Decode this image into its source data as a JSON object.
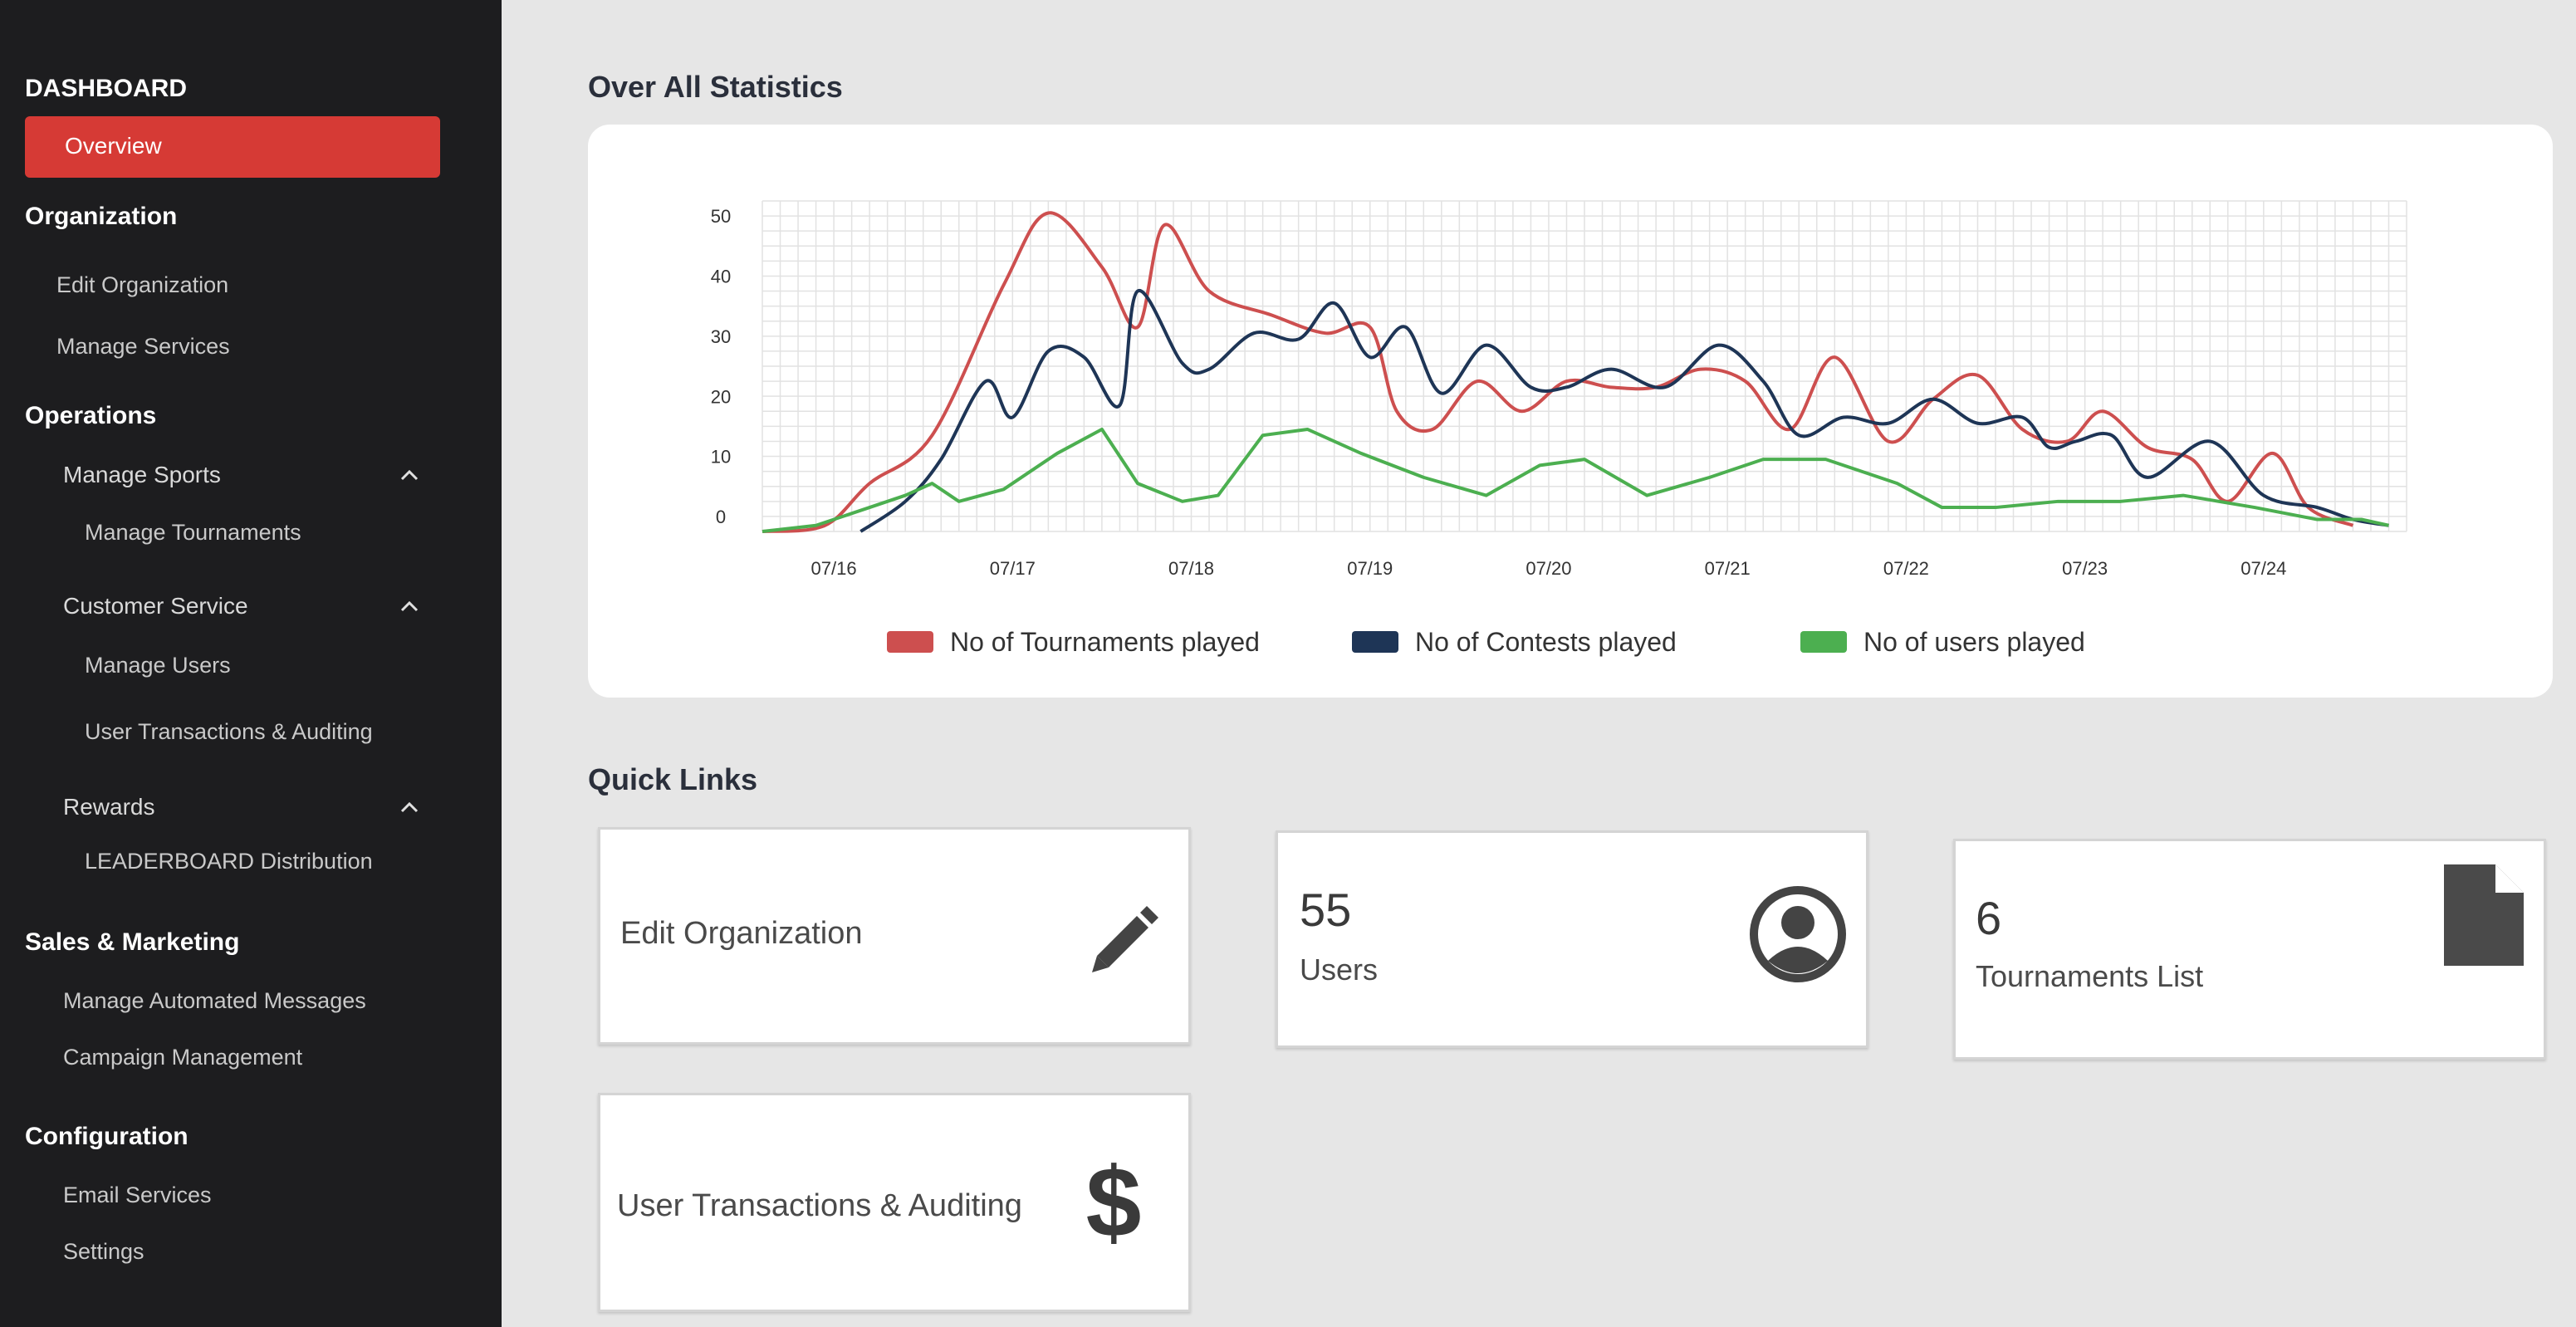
{
  "sidebar": {
    "dashboard": "DASHBOARD",
    "overview": "Overview",
    "organization": "Organization",
    "edit_organization": "Edit Organization",
    "manage_services": "Manage Services",
    "operations": "Operations",
    "manage_sports": "Manage Sports",
    "manage_tournaments": "Manage Tournaments",
    "customer_service": "Customer Service",
    "manage_users": "Manage Users",
    "user_transactions": "User Transactions & Auditing",
    "rewards": "Rewards",
    "leaderboard": "LEADERBOARD Distribution",
    "sales_marketing": "Sales & Marketing",
    "manage_automated_messages": "Manage Automated Messages",
    "campaign_management": "Campaign Management",
    "configuration": "Configuration",
    "email_services": "Email Services",
    "settings": "Settings"
  },
  "main": {
    "stats_title": "Over All Statistics",
    "quick_links_title": "Quick Links"
  },
  "chart_data": {
    "type": "line",
    "title": "",
    "xlabel": "",
    "ylabel": "",
    "ylim": [
      0,
      55
    ],
    "xlim": [
      0,
      9.2
    ],
    "yticks": [
      "0",
      "10",
      "20",
      "30",
      "40",
      "50"
    ],
    "xticks": [
      "07/16",
      "07/17",
      "07/18",
      "07/19",
      "07/20",
      "07/21",
      "07/22",
      "07/23",
      "07/24"
    ],
    "grid": true,
    "legend_position": "bottom",
    "series": [
      {
        "name": "No of Tournaments played",
        "color": "#cd4f4f",
        "x": [
          0,
          0.35,
          0.6,
          0.95,
          1.35,
          1.6,
          1.9,
          2.1,
          2.25,
          2.5,
          2.85,
          3.15,
          3.4,
          3.55,
          3.75,
          4.0,
          4.25,
          4.5,
          4.75,
          5.0,
          5.25,
          5.5,
          5.75,
          6.0,
          6.3,
          6.55,
          6.8,
          7.05,
          7.3,
          7.5,
          7.75,
          8.0,
          8.2,
          8.45,
          8.65,
          8.9
        ],
        "y": [
          0,
          1,
          8,
          16,
          41,
          53,
          44,
          34,
          51,
          40,
          36,
          33,
          34,
          20,
          17,
          25,
          20,
          25,
          24,
          24,
          27,
          25,
          17,
          29,
          15,
          22,
          26,
          17,
          15,
          20,
          14,
          12,
          5,
          13,
          4,
          1
        ]
      },
      {
        "name": "No of Contests played",
        "color": "#1e3556",
        "x": [
          0.55,
          0.8,
          1.0,
          1.25,
          1.4,
          1.6,
          1.8,
          2.0,
          2.1,
          2.35,
          2.5,
          2.75,
          3.0,
          3.2,
          3.4,
          3.6,
          3.8,
          4.05,
          4.3,
          4.5,
          4.75,
          5.05,
          5.35,
          5.6,
          5.8,
          6.05,
          6.3,
          6.55,
          6.8,
          7.05,
          7.2,
          7.35,
          7.55,
          7.75,
          8.1,
          8.4,
          8.7,
          8.9,
          9.1
        ],
        "y": [
          0,
          5,
          12,
          25,
          19,
          30,
          29,
          21,
          40,
          28,
          27,
          33,
          32,
          38,
          29,
          34,
          23,
          31,
          24,
          24,
          27,
          24,
          31,
          25,
          16,
          19,
          18,
          22,
          18,
          19,
          14,
          15,
          16,
          9,
          15,
          6,
          4,
          2,
          1
        ]
      },
      {
        "name": "No of users played",
        "color": "#4caf50",
        "x": [
          0,
          0.3,
          0.6,
          0.8,
          0.95,
          1.1,
          1.35,
          1.65,
          1.9,
          2.1,
          2.35,
          2.55,
          2.8,
          3.05,
          3.35,
          3.7,
          4.05,
          4.35,
          4.6,
          4.95,
          5.3,
          5.6,
          5.95,
          6.35,
          6.6,
          6.9,
          7.25,
          7.6,
          7.95,
          8.35,
          8.7,
          8.95,
          9.1
        ],
        "y": [
          0,
          1,
          4,
          6,
          8,
          5,
          7,
          13,
          17,
          8,
          5,
          6,
          16,
          17,
          13,
          9,
          6,
          11,
          12,
          6,
          9,
          12,
          12,
          8,
          4,
          4,
          5,
          5,
          6,
          4,
          2,
          2,
          1
        ]
      }
    ]
  },
  "quick_links": {
    "edit_org_label": "Edit Organization",
    "users_count": "55",
    "users_label": "Users",
    "tournaments_count": "6",
    "tournaments_label": "Tournaments List",
    "transactions_label": "User Transactions & Auditing",
    "icons": [
      "pencil-icon",
      "user-circle-icon",
      "document-icon",
      "dollar-icon"
    ]
  }
}
